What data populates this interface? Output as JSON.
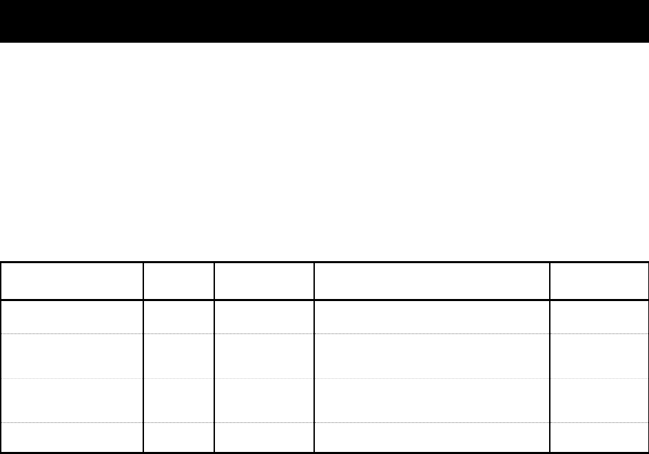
{
  "header_bar": {
    "color": "#000000"
  },
  "table": {
    "columns": [
      "",
      "",
      "",
      "",
      ""
    ],
    "rows": [
      [
        "",
        "",
        "",
        "",
        ""
      ],
      [
        "",
        "",
        "",
        "",
        ""
      ],
      [
        "",
        "",
        "",
        "",
        ""
      ],
      [
        "",
        "",
        "",
        "",
        ""
      ]
    ]
  }
}
